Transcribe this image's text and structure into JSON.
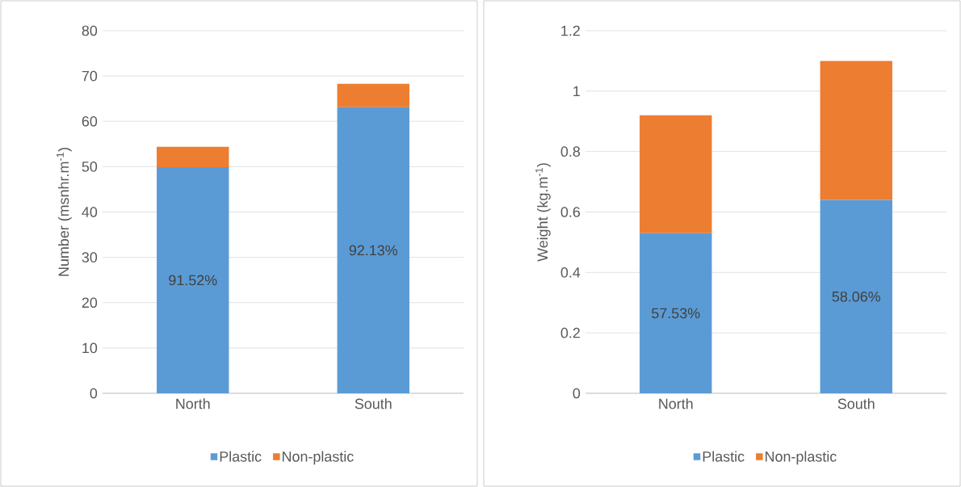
{
  "chart_data": [
    {
      "type": "bar",
      "stacked": true,
      "ylabel": "Number (msnhr.m$^{-1}$)",
      "categories": [
        "North",
        "South"
      ],
      "series": [
        {
          "name": "Plastic",
          "color": "#5b9bd5",
          "values": [
            49.9,
            63.1
          ]
        },
        {
          "name": "Non-plastic",
          "color": "#ed7d31",
          "values": [
            4.5,
            5.2
          ]
        }
      ],
      "annotations": [
        "91.52%",
        "92.13%"
      ],
      "ylim": [
        0,
        80
      ],
      "yticks": [
        0,
        10,
        20,
        30,
        40,
        50,
        60,
        70,
        80
      ],
      "grid": "y",
      "legend": "bottom"
    },
    {
      "type": "bar",
      "stacked": true,
      "ylabel": "Weight (kg.m$^{-1}$)",
      "categories": [
        "North",
        "South"
      ],
      "series": [
        {
          "name": "Plastic",
          "color": "#5b9bd5",
          "values": [
            0.53,
            0.64
          ]
        },
        {
          "name": "Non-plastic",
          "color": "#ed7d31",
          "values": [
            0.39,
            0.46
          ]
        }
      ],
      "annotations": [
        "57.53%",
        "58.06%"
      ],
      "ylim": [
        0,
        1.2
      ],
      "yticks": [
        0,
        0.2,
        0.4,
        0.6,
        0.8,
        1,
        1.2
      ],
      "grid": "y",
      "legend": "bottom"
    }
  ]
}
